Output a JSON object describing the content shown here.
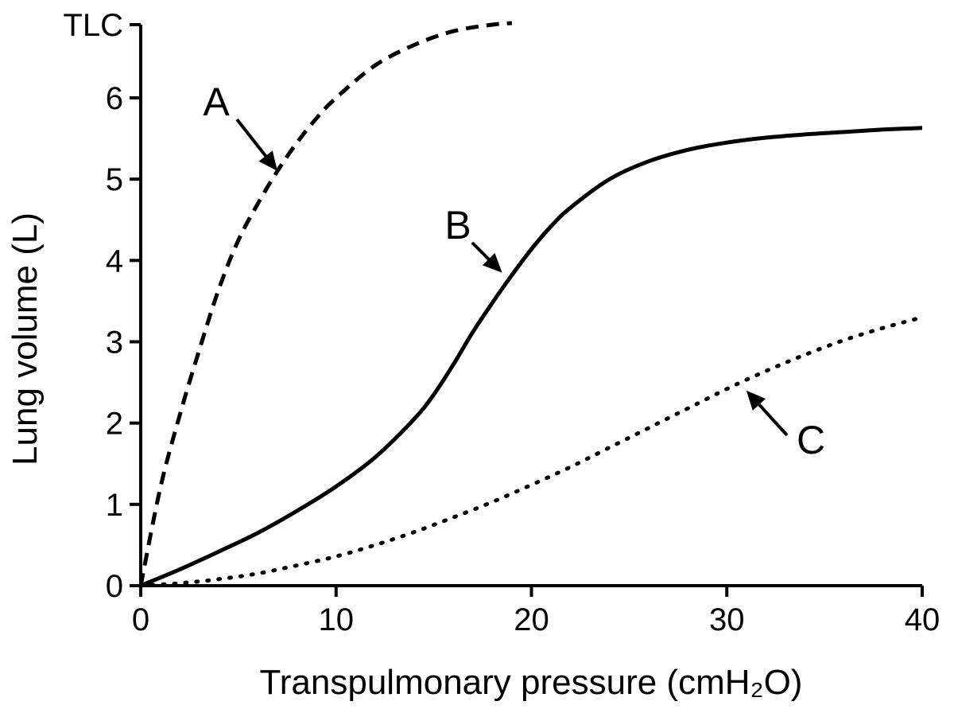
{
  "chart_data": {
    "type": "line",
    "title": "",
    "xlabel": "Transpulmonary pressure (cmH₂O)",
    "ylabel": "Lung volume (L)",
    "xlim": [
      0,
      40
    ],
    "ylim": [
      0,
      6.9
    ],
    "x_ticks": [
      {
        "value": 0,
        "label": "0"
      },
      {
        "value": 10,
        "label": "10"
      },
      {
        "value": 20,
        "label": "20"
      },
      {
        "value": 30,
        "label": "30"
      },
      {
        "value": 40,
        "label": "40"
      }
    ],
    "y_ticks": [
      {
        "value": 0,
        "label": "0"
      },
      {
        "value": 1,
        "label": "1"
      },
      {
        "value": 2,
        "label": "2"
      },
      {
        "value": 3,
        "label": "3"
      },
      {
        "value": 4,
        "label": "4"
      },
      {
        "value": 5,
        "label": "5"
      },
      {
        "value": 6,
        "label": "6"
      },
      {
        "value": 6.9,
        "label": "TLC"
      }
    ],
    "grid": false,
    "series": [
      {
        "name": "A",
        "style": "dashed",
        "x": [
          0,
          1,
          2,
          3,
          4,
          5,
          6,
          7,
          8,
          9,
          10,
          12,
          14,
          16,
          18,
          19
        ],
        "y": [
          0,
          1.2,
          2.1,
          2.9,
          3.65,
          4.25,
          4.7,
          5.1,
          5.45,
          5.75,
          6.0,
          6.4,
          6.65,
          6.82,
          6.9,
          6.92
        ]
      },
      {
        "name": "B",
        "style": "solid",
        "x": [
          0,
          2,
          4,
          6,
          8,
          10,
          12,
          14,
          15,
          16,
          17,
          18,
          19,
          20,
          21,
          22,
          24,
          26,
          28,
          30,
          32,
          34,
          36,
          38,
          40
        ],
        "y": [
          0,
          0.2,
          0.42,
          0.65,
          0.92,
          1.22,
          1.58,
          2.05,
          2.35,
          2.72,
          3.12,
          3.48,
          3.82,
          4.14,
          4.42,
          4.65,
          5.0,
          5.22,
          5.36,
          5.45,
          5.51,
          5.55,
          5.58,
          5.61,
          5.63
        ]
      },
      {
        "name": "C",
        "style": "dotted",
        "x": [
          0,
          2,
          4,
          6,
          8,
          10,
          12,
          14,
          16,
          18,
          20,
          22,
          24,
          26,
          28,
          30,
          32,
          34,
          36,
          38,
          40
        ],
        "y": [
          0,
          0.03,
          0.08,
          0.15,
          0.25,
          0.36,
          0.5,
          0.66,
          0.84,
          1.03,
          1.24,
          1.46,
          1.7,
          1.94,
          2.18,
          2.42,
          2.64,
          2.84,
          3.02,
          3.17,
          3.3
        ]
      }
    ],
    "annotations": [
      {
        "text": "A",
        "target_x": 7,
        "target_y": 5.1
      },
      {
        "text": "B",
        "target_x": 18.5,
        "target_y": 3.85
      },
      {
        "text": "C",
        "target_x": 31,
        "target_y": 2.4
      }
    ]
  }
}
